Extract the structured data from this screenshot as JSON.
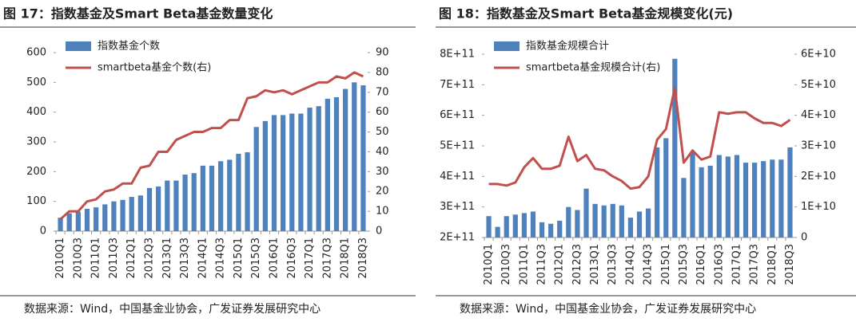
{
  "chart_data": [
    {
      "type": "bar_line",
      "title": "图 17：指数基金及Smart Beta基金数量变化",
      "source": "数据来源：Wind，中国基金业协会，广发证券发展研究中心",
      "categories": [
        "2010Q1",
        null,
        "2010Q3",
        null,
        "2011Q1",
        null,
        "2011Q3",
        null,
        "2012Q1",
        null,
        "2012Q3",
        null,
        "2013Q1",
        null,
        "2013Q3",
        null,
        "2014Q1",
        null,
        "2014Q3",
        null,
        "2015Q1",
        null,
        "2015Q3",
        null,
        "2016Q1",
        null,
        "2016Q3",
        null,
        "2017Q1",
        null,
        "2017Q3",
        null,
        "2018Q1",
        null,
        "2018Q3"
      ],
      "series": [
        {
          "name": "指数基金个数",
          "color": "#4f81bd",
          "kind": "bar",
          "values": [
            45,
            60,
            65,
            75,
            80,
            90,
            100,
            105,
            115,
            120,
            145,
            150,
            170,
            170,
            190,
            195,
            220,
            220,
            235,
            240,
            260,
            265,
            350,
            370,
            390,
            390,
            395,
            395,
            415,
            420,
            445,
            450,
            478,
            500,
            490
          ]
        },
        {
          "name": "smartbeta基金个数(右)",
          "color": "#c0504d",
          "kind": "line",
          "axis": "y2",
          "values": [
            6,
            10,
            10,
            15,
            16,
            20,
            21,
            24,
            24,
            32,
            33,
            40,
            40,
            46,
            48,
            50,
            50,
            52,
            52,
            56,
            56,
            67,
            68,
            71,
            70,
            71,
            69,
            71,
            73,
            75,
            75,
            78,
            77,
            80,
            78
          ]
        }
      ],
      "ylim": [
        0,
        600
      ],
      "yticks": [
        0,
        100,
        200,
        300,
        400,
        500,
        600
      ],
      "y2lim": [
        0,
        90
      ],
      "y2ticks": [
        0,
        10,
        20,
        30,
        40,
        50,
        60,
        70,
        80,
        90
      ],
      "legend": "top-left",
      "grid": false
    },
    {
      "type": "bar_line",
      "title": "图 18：指数基金及Smart Beta基金规模变化(元)",
      "source": "数据来源：Wind，中国基金业协会，广发证券发展研究中心",
      "categories": [
        "2010Q1",
        null,
        "2010Q3",
        null,
        "2011Q1",
        null,
        "2011Q3",
        null,
        "2012Q1",
        null,
        "2012Q3",
        null,
        "2013Q1",
        null,
        "2013Q3",
        null,
        "2014Q1",
        null,
        "2014Q3",
        null,
        "2015Q1",
        null,
        "2015Q3",
        null,
        "2016Q1",
        null,
        "2016Q3",
        null,
        "2017Q1",
        null,
        "2017Q3",
        null,
        "2018Q1",
        null,
        "2018Q3"
      ],
      "series": [
        {
          "name": "指数基金规模合计",
          "color": "#4f81bd",
          "kind": "bar",
          "values": [
            270000000000,
            235000000000,
            270000000000,
            275000000000,
            280000000000,
            285000000000,
            250000000000,
            245000000000,
            255000000000,
            300000000000,
            290000000000,
            360000000000,
            310000000000,
            305000000000,
            310000000000,
            305000000000,
            265000000000,
            285000000000,
            295000000000,
            495000000000,
            525000000000,
            785000000000,
            395000000000,
            480000000000,
            430000000000,
            435000000000,
            470000000000,
            465000000000,
            470000000000,
            445000000000,
            445000000000,
            450000000000,
            455000000000,
            455000000000,
            495000000000
          ]
        },
        {
          "name": "smartbeta基金规模合计(右)",
          "color": "#c0504d",
          "kind": "line",
          "axis": "y2",
          "values": [
            17500000000,
            17500000000,
            17000000000,
            18000000000,
            23000000000,
            26000000000,
            22500000000,
            22500000000,
            23500000000,
            33000000000,
            25000000000,
            27000000000,
            22500000000,
            22000000000,
            20000000000,
            18500000000,
            16000000000,
            16500000000,
            20000000000,
            32000000000,
            35500000000,
            49000000000,
            24500000000,
            28500000000,
            25500000000,
            26500000000,
            41000000000,
            40500000000,
            41000000000,
            41000000000,
            39000000000,
            37500000000,
            37500000000,
            36500000000,
            38500000000
          ]
        }
      ],
      "ylim": [
        200000000000,
        800000000000
      ],
      "yticks": [
        {
          "value": 200000000000,
          "label": "2E+11"
        },
        {
          "value": 300000000000,
          "label": "3E+11"
        },
        {
          "value": 400000000000,
          "label": "4E+11"
        },
        {
          "value": 500000000000,
          "label": "5E+11"
        },
        {
          "value": 600000000000,
          "label": "6E+11"
        },
        {
          "value": 700000000000,
          "label": "7E+11"
        },
        {
          "value": 800000000000,
          "label": "8E+11"
        }
      ],
      "y2lim": [
        0,
        60000000000
      ],
      "y2ticks": [
        0,
        {
          "value": 10000000000,
          "label": "1E+10"
        },
        {
          "value": 20000000000,
          "label": "2E+10"
        },
        {
          "value": 30000000000,
          "label": "3E+10"
        },
        {
          "value": 40000000000,
          "label": "4E+10"
        },
        {
          "value": 50000000000,
          "label": "5E+10"
        },
        {
          "value": 60000000000,
          "label": "6E+10"
        }
      ],
      "legend": "top-left",
      "grid": false
    }
  ]
}
